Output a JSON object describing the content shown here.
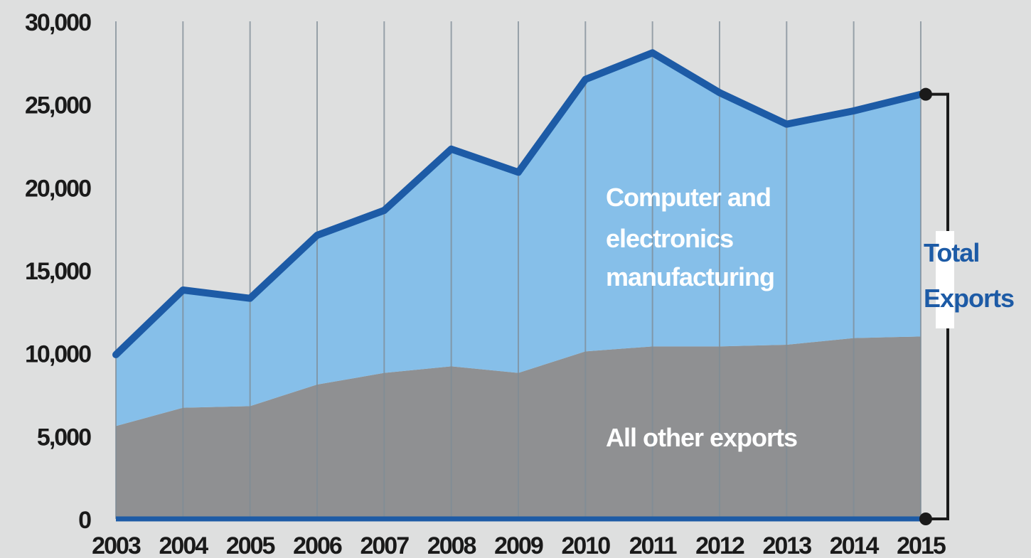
{
  "chart_data": {
    "type": "area",
    "x": [
      2003,
      2004,
      2005,
      2006,
      2007,
      2008,
      2009,
      2010,
      2011,
      2012,
      2013,
      2014,
      2015
    ],
    "x_tick_labels": [
      "2003",
      "2004",
      "2005",
      "2006",
      "2007",
      "2008",
      "2009",
      "2010",
      "2011",
      "2012",
      "2013",
      "2014",
      "2015"
    ],
    "y_tick_labels": [
      "0",
      "5,000",
      "10,000",
      "15,000",
      "20,000",
      "25,000",
      "30,000"
    ],
    "y_ticks": [
      0,
      5000,
      10000,
      15000,
      20000,
      25000,
      30000
    ],
    "ylim": [
      0,
      30000
    ],
    "grid": "vertical",
    "series": [
      {
        "name": "All other exports",
        "values": [
          5600,
          6700,
          6800,
          8100,
          8800,
          9200,
          8800,
          10100,
          10400,
          10400,
          10500,
          10900,
          11000
        ],
        "color": "#8f9092"
      },
      {
        "name": "Computer and electronics manufacturing",
        "values": [
          4300,
          7100,
          6500,
          9000,
          9800,
          13100,
          12100,
          16400,
          17700,
          15300,
          13300,
          13700,
          14600
        ],
        "color": "#86bfe9"
      }
    ],
    "total": {
      "values": [
        9900,
        13800,
        13300,
        17100,
        18600,
        22300,
        20900,
        26500,
        28100,
        25700,
        23800,
        24600,
        25600
      ],
      "color": "#1d5ba6"
    },
    "labels": {
      "computer_line1": "Computer and",
      "computer_line2": "electronics",
      "computer_line3": "manufacturing",
      "other": "All other exports",
      "total_line1": "Total",
      "total_line2": "Exports"
    },
    "total_label_color": "#1d5ba6"
  }
}
